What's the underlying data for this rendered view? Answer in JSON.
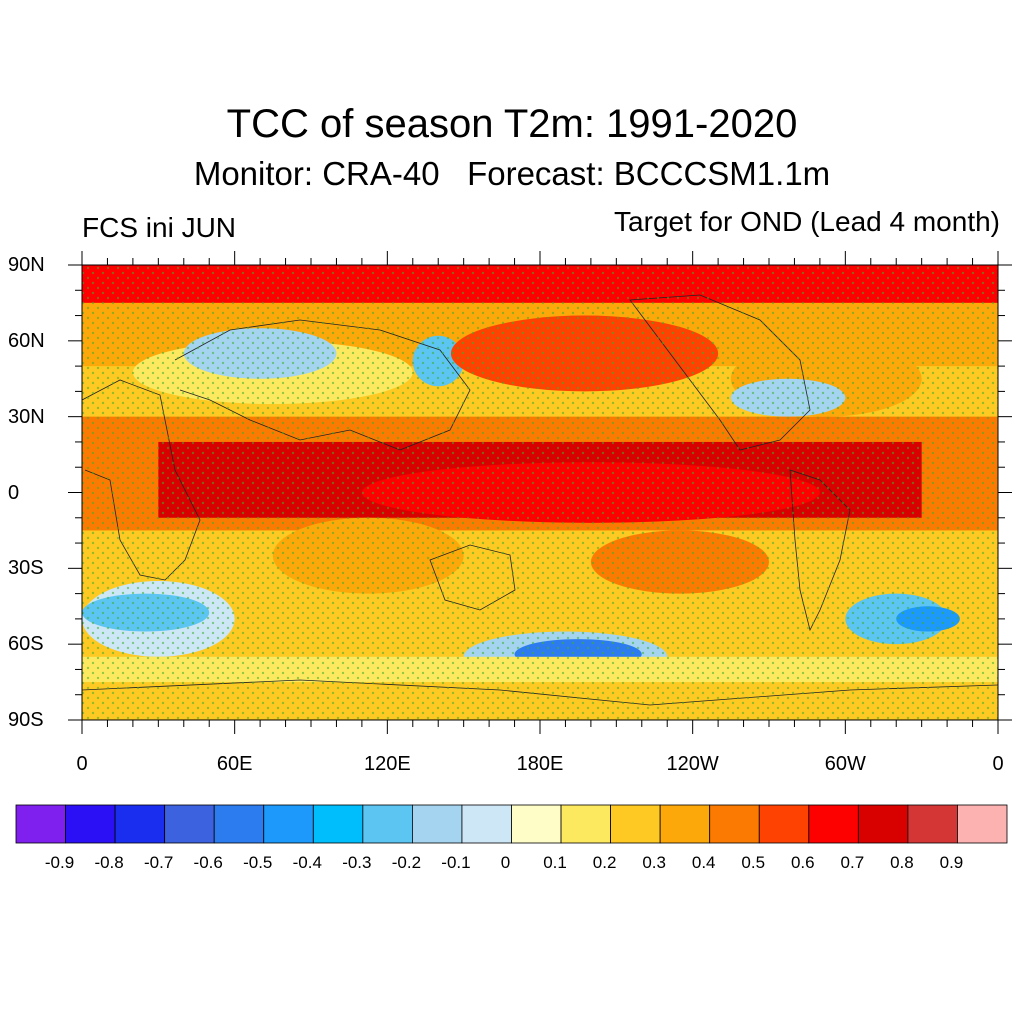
{
  "title": "TCC of season T2m: 1991-2020",
  "subtitle": "Monitor: CRA-40   Forecast: BCCCSM1.1m",
  "left_label": "FCS ini JUN",
  "right_label": "Target for OND (Lead 4 month)",
  "lat_ticks": [
    {
      "value": 90,
      "label": "90N"
    },
    {
      "value": 60,
      "label": "60N"
    },
    {
      "value": 30,
      "label": "30N"
    },
    {
      "value": 0,
      "label": "0"
    },
    {
      "value": -30,
      "label": "30S"
    },
    {
      "value": -60,
      "label": "60S"
    },
    {
      "value": -90,
      "label": "90S"
    }
  ],
  "lon_ticks": [
    {
      "value": 0,
      "label": "0"
    },
    {
      "value": 60,
      "label": "60E"
    },
    {
      "value": 120,
      "label": "120E"
    },
    {
      "value": 180,
      "label": "180E"
    },
    {
      "value": 240,
      "label": "120W"
    },
    {
      "value": 300,
      "label": "60W"
    },
    {
      "value": 360,
      "label": "0"
    }
  ],
  "colorbar": {
    "colors": [
      "#8020ee",
      "#2b10f5",
      "#1a2ef0",
      "#3d62e0",
      "#2c7cf0",
      "#1c99fa",
      "#00bdfb",
      "#5cc5f2",
      "#a4d4f0",
      "#cde7f7",
      "#fefdc8",
      "#fde960",
      "#fdc922",
      "#fca80b",
      "#fb7b02",
      "#fd4202",
      "#fd0000",
      "#d90000",
      "#d43535",
      "#fdb2b2"
    ],
    "labels": [
      "-0.9",
      "-0.8",
      "-0.7",
      "-0.6",
      "-0.5",
      "-0.4",
      "-0.3",
      "-0.2",
      "-0.1",
      "0",
      "0.1",
      "0.2",
      "0.3",
      "0.4",
      "0.5",
      "0.6",
      "0.7",
      "0.8",
      "0.9"
    ]
  },
  "map_data": {
    "background_color": "#fdc922",
    "regions": [
      {
        "lon0": 0,
        "lon1": 360,
        "lat0": 75,
        "lat1": 90,
        "color": "#fd0000"
      },
      {
        "lon0": 0,
        "lon1": 360,
        "lat0": 50,
        "lat1": 75,
        "color": "#fca80b"
      },
      {
        "lon0": 20,
        "lon1": 130,
        "lat0": 35,
        "lat1": 60,
        "color": "#fde960"
      },
      {
        "lon0": 40,
        "lon1": 100,
        "lat0": 45,
        "lat1": 65,
        "color": "#a4d4f0"
      },
      {
        "lon0": 130,
        "lon1": 150,
        "lat0": 42,
        "lat1": 62,
        "color": "#5cc5f2"
      },
      {
        "lon0": 145,
        "lon1": 250,
        "lat0": 40,
        "lat1": 70,
        "color": "#fd4202"
      },
      {
        "lon0": 255,
        "lon1": 330,
        "lat0": 30,
        "lat1": 60,
        "color": "#fca80b"
      },
      {
        "lon0": 255,
        "lon1": 300,
        "lat0": 30,
        "lat1": 45,
        "color": "#a4d4f0"
      },
      {
        "lon0": 0,
        "lon1": 360,
        "lat0": -15,
        "lat1": 30,
        "color": "#fb7b02"
      },
      {
        "lon0": 30,
        "lon1": 330,
        "lat0": -10,
        "lat1": 20,
        "color": "#d90000"
      },
      {
        "lon0": 110,
        "lon1": 290,
        "lat0": -12,
        "lat1": 12,
        "color": "#fd0000"
      },
      {
        "lon0": 75,
        "lon1": 150,
        "lat0": -40,
        "lat1": -10,
        "color": "#fca80b"
      },
      {
        "lon0": 200,
        "lon1": 270,
        "lat0": -40,
        "lat1": -15,
        "color": "#fb7b02"
      },
      {
        "lon0": 0,
        "lon1": 60,
        "lat0": -65,
        "lat1": -35,
        "color": "#cde7f7"
      },
      {
        "lon0": 0,
        "lon1": 50,
        "lat0": -55,
        "lat1": -40,
        "color": "#5cc5f2"
      },
      {
        "lon0": 150,
        "lon1": 230,
        "lat0": -75,
        "lat1": -55,
        "color": "#a4d4f0"
      },
      {
        "lon0": 170,
        "lon1": 220,
        "lat0": -70,
        "lat1": -58,
        "color": "#2c7cf0"
      },
      {
        "lon0": 300,
        "lon1": 340,
        "lat0": -60,
        "lat1": -40,
        "color": "#5cc5f2"
      },
      {
        "lon0": 320,
        "lon1": 345,
        "lat0": -55,
        "lat1": -45,
        "color": "#1c99fa"
      },
      {
        "lon0": 0,
        "lon1": 360,
        "lat0": -90,
        "lat1": -75,
        "color": "#fdc922"
      },
      {
        "lon0": 0,
        "lon1": 360,
        "lat0": -75,
        "lat1": -65,
        "color": "#fde960"
      }
    ]
  }
}
